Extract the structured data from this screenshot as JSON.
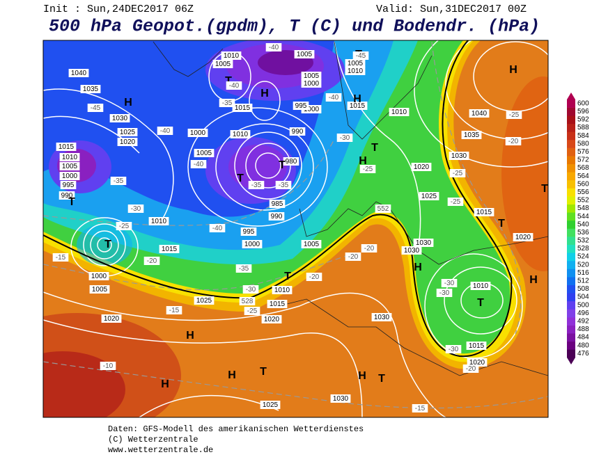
{
  "header": {
    "init": "Init : Sun,24DEC2017 06Z",
    "valid": "Valid: Sun,31DEC2017 00Z",
    "title": "500 hPa Geopot.(gpdm), T (C) und Bodendr. (hPa)"
  },
  "colorbar": {
    "values": [
      476,
      480,
      484,
      488,
      492,
      496,
      500,
      504,
      508,
      512,
      516,
      520,
      524,
      528,
      532,
      536,
      540,
      544,
      548,
      552,
      556,
      560,
      564,
      568,
      572,
      576,
      580,
      584,
      588,
      592,
      596,
      600
    ],
    "colors": [
      "#4b0055",
      "#6a0080",
      "#7a10a0",
      "#8a20c0",
      "#9030d8",
      "#8040e8",
      "#6040f0",
      "#3040f0",
      "#2050f0",
      "#1070f0",
      "#1090f0",
      "#10b0f0",
      "#10d0e8",
      "#20e0c0",
      "#30e090",
      "#40e060",
      "#30d030",
      "#60e020",
      "#a0e800",
      "#e0f000",
      "#f8e000",
      "#f8c000",
      "#f8a800",
      "#f09000",
      "#e87800",
      "#e06010",
      "#d84818",
      "#c83018",
      "#b82018",
      "#a81018",
      "#a00830",
      "#b00050"
    ]
  },
  "map": {
    "labels": [
      "1040",
      "1035",
      "1030",
      "1025",
      "1020",
      "1015",
      "1010",
      "1005",
      "1000",
      "995",
      "990",
      "1010",
      "1015",
      "1000",
      "1005",
      "1020",
      "1025",
      "1020",
      "1015",
      "1010",
      "1000",
      "995",
      "990",
      "985",
      "1005",
      "1010",
      "1005",
      "1005",
      "1005",
      "1000",
      "1000",
      "995",
      "990",
      "980",
      "1010",
      "1015",
      "1000",
      "1005",
      "1015",
      "1010",
      "1010",
      "1005",
      "1020",
      "1025",
      "1030",
      "1030",
      "1015",
      "1020",
      "1030",
      "1035",
      "1040",
      "1010",
      "1015",
      "1020",
      "1030",
      "1030",
      "1025",
      "H",
      "H",
      "H",
      "H",
      "H",
      "H",
      "H",
      "H",
      "H",
      "H",
      "H",
      "T",
      "T",
      "T",
      "T",
      "T",
      "T",
      "T",
      "T",
      "T",
      "T",
      "T",
      "T",
      "T",
      "-45",
      "-40",
      "-35",
      "-30",
      "-25",
      "-20",
      "-15",
      "-40",
      "-45",
      "-40",
      "-35",
      "-35",
      "-35",
      "-40",
      "-40",
      "-35",
      "-30",
      "-25",
      "-20",
      "-20",
      "-20",
      "-25",
      "-25",
      "-25",
      "-20",
      "-25",
      "-30",
      "-30",
      "-30",
      "-20",
      "-15",
      "-10",
      "-15",
      "-30",
      "-40",
      "552",
      "528"
    ]
  },
  "footer": {
    "lines": [
      "Daten: GFS-Modell des amerikanischen Wetterdienstes",
      "(C) Wetterzentrale",
      "www.wetterzentrale.de"
    ]
  }
}
